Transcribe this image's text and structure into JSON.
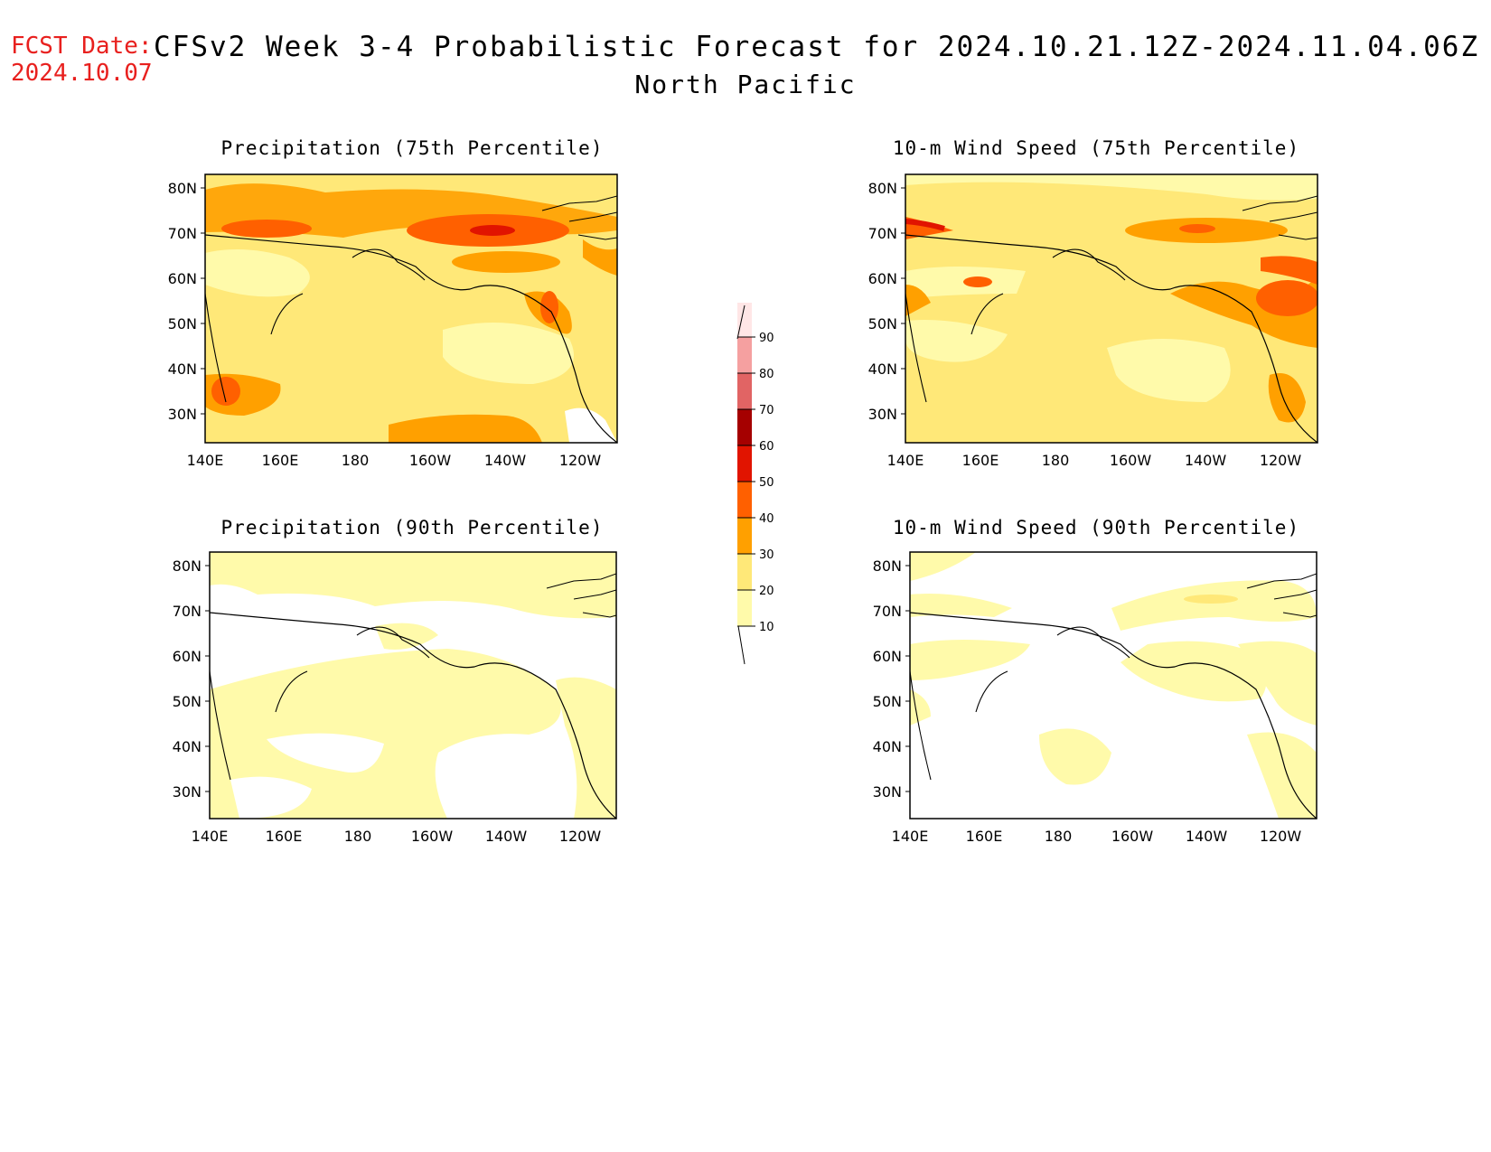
{
  "header": {
    "fcst_date_label": "FCST Date:",
    "fcst_date_value": "2024.10.07",
    "title": "CFSv2 Week 3-4 Probabilistic Forecast for 2024.10.21.12Z-2024.11.04.06Z",
    "subtitle": "North Pacific"
  },
  "axes": {
    "lat_ticks": [
      "80N",
      "70N",
      "60N",
      "50N",
      "40N",
      "30N"
    ],
    "lon_ticks": [
      "140E",
      "160E",
      "180",
      "160W",
      "140W",
      "120W"
    ]
  },
  "panels": [
    {
      "title": "Precipitation (75th Percentile)"
    },
    {
      "title": "10-m Wind Speed (75th Percentile)"
    },
    {
      "title": "Precipitation (90th Percentile)"
    },
    {
      "title": "10-m Wind Speed (90th Percentile)"
    }
  ],
  "colorbar": {
    "levels": [
      "10",
      "20",
      "30",
      "40",
      "50",
      "60",
      "70",
      "80",
      "90"
    ],
    "colors": [
      "#fffaaa",
      "#ffe878",
      "#ffa000",
      "#ff6000",
      "#e11400",
      "#a50000",
      "#e16464",
      "#f5a0a0",
      "#ffe6e6"
    ]
  }
}
